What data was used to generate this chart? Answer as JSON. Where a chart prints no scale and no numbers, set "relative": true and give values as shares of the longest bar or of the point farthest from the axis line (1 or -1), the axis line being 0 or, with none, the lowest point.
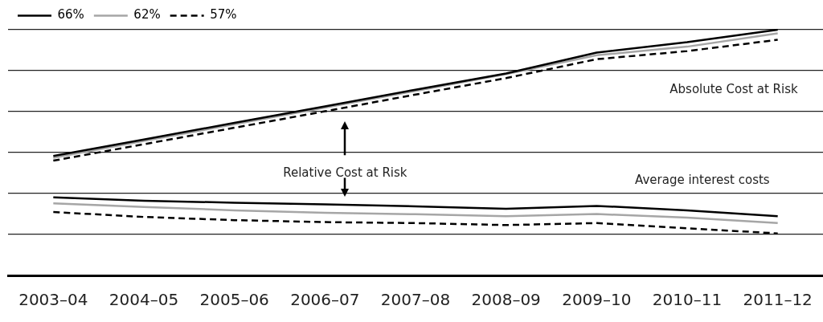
{
  "chart_data": {
    "type": "line",
    "relative": true,
    "grid": "y",
    "legend": "top left",
    "line_style": "solid",
    "marker": "none",
    "categories": [
      "2003–04",
      "2004–05",
      "2005–06",
      "2006–07",
      "2007–08",
      "2008–09",
      "2009–10",
      "2010–11",
      "2011–12"
    ],
    "series": [
      {
        "name": "66%",
        "color": "#000000",
        "values": [
          0.486,
          0.553,
          0.621,
          0.688,
          0.756,
          0.822,
          0.907,
          0.949,
          1
        ]
      },
      {
        "name": "62%",
        "color": "#a6a6a6",
        "values": [
          0.479,
          0.547,
          0.615,
          0.683,
          0.751,
          0.819,
          0.896,
          0.931,
          0.985
        ]
      },
      {
        "name": "57%",
        "color": "#000000",
        "line_style": "dashed",
        "values": [
          0.467,
          0.534,
          0.601,
          0.668,
          0.736,
          0.803,
          0.88,
          0.913,
          0.959
        ]
      },
      {
        "color": "#000000",
        "values": [
          0.318,
          0.304,
          0.296,
          0.289,
          0.281,
          0.271,
          0.283,
          0.265,
          0.241
        ]
      },
      {
        "color": "#a6a6a6",
        "values": [
          0.293,
          0.279,
          0.265,
          0.255,
          0.249,
          0.241,
          0.25,
          0.235,
          0.213
        ]
      },
      {
        "color": "#000000",
        "line_style": "dashed",
        "values": [
          0.258,
          0.238,
          0.225,
          0.217,
          0.213,
          0.205,
          0.213,
          0.192,
          0.171
        ]
      }
    ],
    "annotations": [
      "Absolute Cost at Risk",
      "Relative Cost at Risk",
      "Average interest costs"
    ]
  }
}
